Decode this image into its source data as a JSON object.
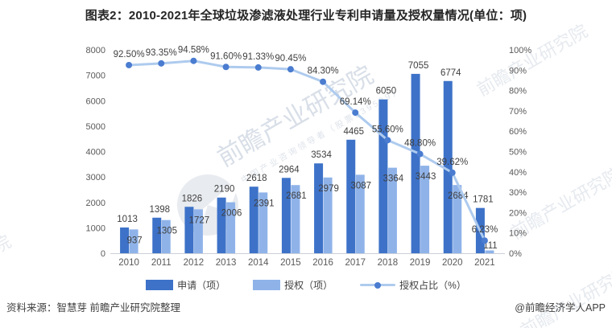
{
  "title": "图表2：2010-2021年全球垃圾渗滤液处理行业专利申请量及授权量情况(单位：项)",
  "watermark": {
    "text": "前瞻产业研究院",
    "subtext": "中国产业咨询领导者（股票839599）"
  },
  "chart_data": {
    "type": "bar",
    "subtype": "grouped-bar-with-line",
    "categories": [
      "2010",
      "2011",
      "2012",
      "2013",
      "2014",
      "2015",
      "2016",
      "2017",
      "2018",
      "2019",
      "2020",
      "2021"
    ],
    "series": [
      {
        "name": "申请（项）",
        "chart_type": "bar",
        "axis": "left",
        "color": "#3D72C8",
        "values": [
          1013,
          1398,
          1826,
          2190,
          2618,
          2964,
          3534,
          4465,
          6050,
          7055,
          6774,
          1781
        ]
      },
      {
        "name": "授权（项）",
        "chart_type": "bar",
        "axis": "left",
        "color": "#8FB3E9",
        "values": [
          937,
          1305,
          1727,
          2006,
          2391,
          2681,
          2979,
          3087,
          3364,
          3443,
          2684,
          111
        ]
      },
      {
        "name": "授权占比（%）",
        "chart_type": "line",
        "axis": "right",
        "color": "#AECBEE",
        "marker_color": "#4A7CD0",
        "values": [
          92.5,
          93.35,
          94.58,
          91.6,
          91.33,
          90.45,
          84.3,
          69.14,
          55.6,
          48.8,
          39.62,
          6.23
        ],
        "labels": [
          "92.50%",
          "93.35%",
          "94.58%",
          "91.60%",
          "91.33%",
          "90.45%",
          "84.30%",
          "69.14%",
          "55.60%",
          "48.80%",
          "39.62%",
          "6.23%"
        ]
      }
    ],
    "left_axis": {
      "min": 0,
      "max": 8000,
      "step": 1000
    },
    "right_axis": {
      "min": 0,
      "max": 100,
      "step": 10,
      "suffix": "%"
    },
    "grid": false,
    "legend_position": "bottom",
    "label_color": "#3f3f3f",
    "tick_color": "#595959",
    "axis_line_color": "#CBD0D8"
  },
  "legend": {
    "items": [
      {
        "label": "申请（项）",
        "type": "bar",
        "color": "#3D72C8"
      },
      {
        "label": "授权（项）",
        "type": "bar",
        "color": "#8FB3E9"
      },
      {
        "label": "授权占比（%）",
        "type": "line",
        "color": "#AECBEE",
        "marker_color": "#4A7CD0"
      }
    ]
  },
  "footer": {
    "source": "资料来源：智慧芽 前瞻产业研究院整理",
    "credit": "@前瞻经济学人APP"
  }
}
